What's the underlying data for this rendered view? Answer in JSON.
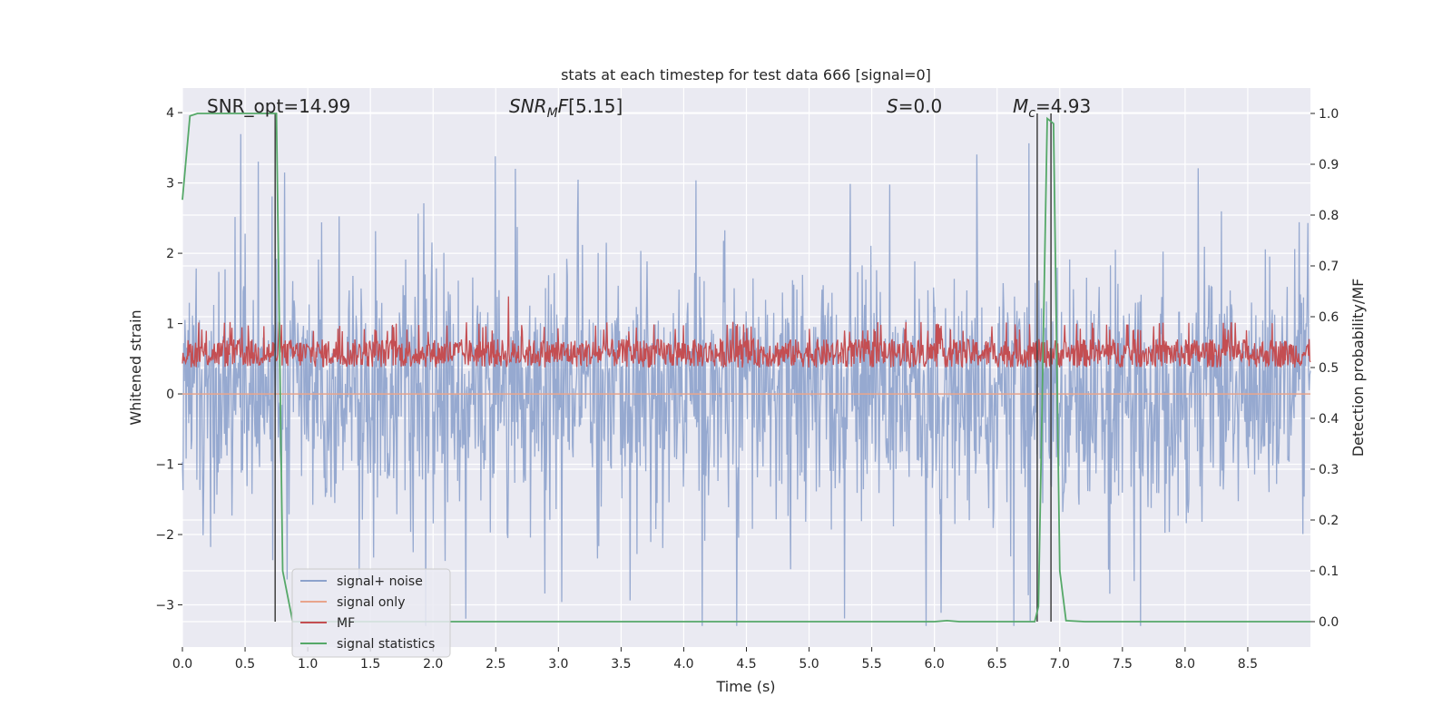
{
  "chart_data": {
    "type": "line",
    "title": "stats at each timestep for test data 666 [signal=0]",
    "xlabel": "Time (s)",
    "ylabel": "Whitened strain",
    "ylabel_right": "Detection probability/MF",
    "xlim": [
      0,
      9
    ],
    "ylim": [
      -3.6,
      4.35
    ],
    "ylim_right": [
      -0.05,
      1.05
    ],
    "x_ticks": [
      0.0,
      0.5,
      1.0,
      1.5,
      2.0,
      2.5,
      3.0,
      3.5,
      4.0,
      4.5,
      5.0,
      5.5,
      6.0,
      6.5,
      7.0,
      7.5,
      8.0,
      8.5
    ],
    "x_tick_labels": [
      "0.0",
      "0.5",
      "1.0",
      "1.5",
      "2.0",
      "2.5",
      "3.0",
      "3.5",
      "4.0",
      "4.5",
      "5.0",
      "5.5",
      "6.0",
      "6.5",
      "7.0",
      "7.5",
      "8.0",
      "8.5"
    ],
    "y_ticks": [
      4,
      3,
      2,
      1,
      0,
      -1,
      -2,
      -3
    ],
    "y_tick_labels": [
      "4",
      "3",
      "2",
      "1",
      "0",
      "−1",
      "−2",
      "−3"
    ],
    "y_right_ticks": [
      1.0,
      0.9,
      0.8,
      0.7,
      0.6,
      0.5,
      0.4,
      0.3,
      0.2,
      0.1,
      0.0
    ],
    "y_right_tick_labels": [
      "1.0",
      "0.9",
      "0.8",
      "0.7",
      "0.6",
      "0.5",
      "0.4",
      "0.3",
      "0.2",
      "0.1",
      "0.0"
    ],
    "grid": true,
    "legend_position": "lower-left",
    "series": [
      {
        "name": "signal+ noise",
        "axis": "left",
        "color": "#8da2cc",
        "kind": "noise",
        "n_points": 1800,
        "typical_range": [
          -2.0,
          2.2
        ],
        "extreme_range": [
          -3.3,
          4.0
        ]
      },
      {
        "name": "signal only",
        "axis": "left",
        "color": "#e8a58c",
        "x": [
          0,
          9
        ],
        "y": [
          0,
          0
        ]
      },
      {
        "name": "MF",
        "axis": "right",
        "color": "#c44e52",
        "kind": "noise",
        "n_points": 1800,
        "typical_range": [
          0.5,
          0.57
        ],
        "peak": {
          "x": 2.6,
          "y": 0.64
        }
      },
      {
        "name": "signal statistics",
        "axis": "right",
        "color": "#55a868",
        "x": [
          0.0,
          0.06,
          0.12,
          0.2,
          0.3,
          0.4,
          0.5,
          0.6,
          0.7,
          0.75,
          0.8,
          0.88,
          0.95,
          1.5,
          2.0,
          3.0,
          4.0,
          5.0,
          5.5,
          6.0,
          6.1,
          6.2,
          6.5,
          6.8,
          6.83,
          6.9,
          6.95,
          7.0,
          7.05,
          7.2,
          7.5,
          8.0,
          8.5,
          9.0
        ],
        "y": [
          0.83,
          0.995,
          1.0,
          1.0,
          1.0,
          1.0,
          1.0,
          1.0,
          1.0,
          1.0,
          0.1,
          0.0,
          0.0,
          0.0,
          0.0,
          0.0,
          0.0,
          0.0,
          0.0,
          0.0,
          0.002,
          0.0,
          0.0,
          0.0,
          0.03,
          0.99,
          0.98,
          0.1,
          0.002,
          0.0,
          0.0,
          0.0,
          0.0,
          0.0
        ]
      }
    ],
    "vlines": [
      0.74,
      6.82,
      6.93
    ],
    "vline_color": "#404040",
    "annotations": {
      "snr_opt": "SNR_opt=14.99",
      "snr_mf": "[5.15]",
      "s_val": "=0.0",
      "mc_val": "=4.93"
    }
  }
}
